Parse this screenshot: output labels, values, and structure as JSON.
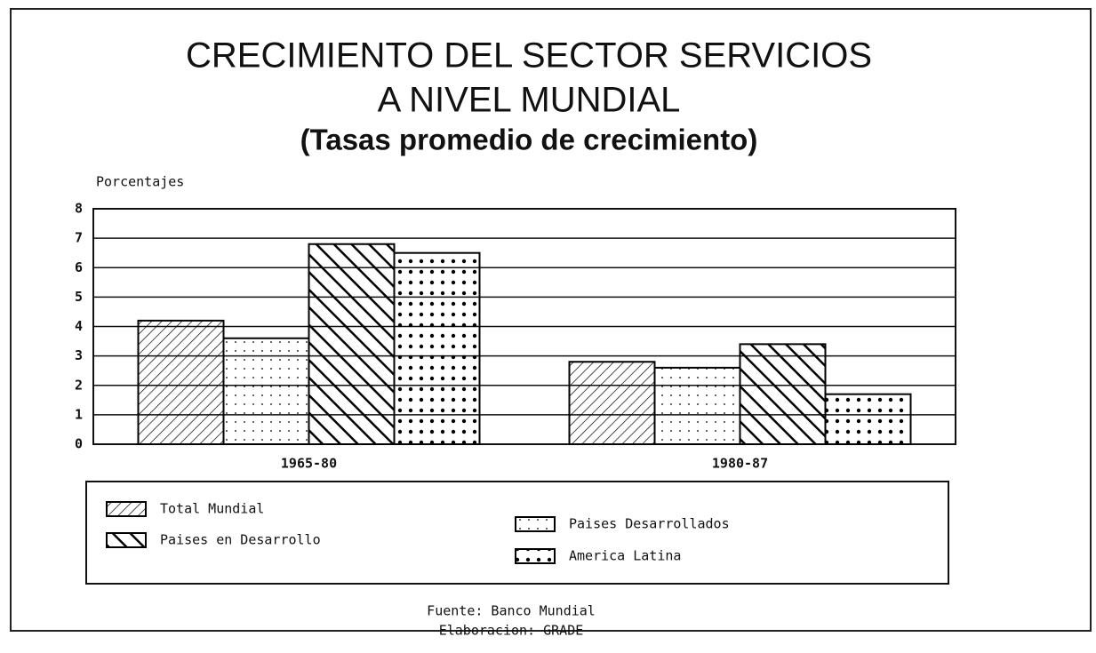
{
  "chart_data": {
    "type": "bar",
    "title": [
      "CRECIMIENTO DEL SECTOR SERVICIOS",
      "A NIVEL MUNDIAL"
    ],
    "subtitle": "(Tasas promedio de crecimiento)",
    "y_label": "Porcentajes",
    "categories": [
      "1965-80",
      "1980-87"
    ],
    "series": [
      {
        "name": "Total Mundial",
        "color": "#000000",
        "pattern": "fine-diagonal",
        "values": [
          4.2,
          2.8
        ]
      },
      {
        "name": "Paises Desarrollados",
        "color": "#000000",
        "pattern": "sparse-dots",
        "values": [
          3.6,
          2.6
        ]
      },
      {
        "name": "Paises en Desarrollo",
        "color": "#000000",
        "pattern": "bold-diagonal",
        "values": [
          6.8,
          3.4
        ]
      },
      {
        "name": "America Latina",
        "color": "#000000",
        "pattern": "dense-dots",
        "values": [
          6.5,
          1.7
        ]
      }
    ],
    "ylim": [
      0,
      8
    ],
    "yticks": [
      0,
      1,
      2,
      3,
      4,
      5,
      6,
      7,
      8
    ],
    "grid": true,
    "source": "Fuente:  Banco Mundial",
    "credit": "Elaboracion:  GRADE"
  }
}
